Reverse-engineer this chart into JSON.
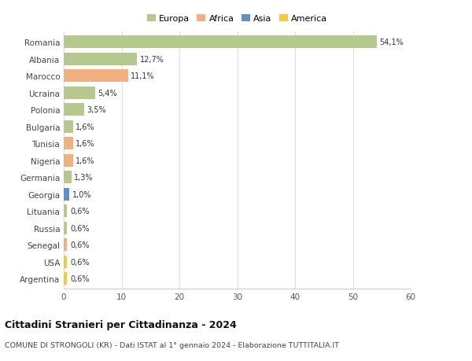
{
  "countries": [
    "Romania",
    "Albania",
    "Marocco",
    "Ucraina",
    "Polonia",
    "Bulgaria",
    "Tunisia",
    "Nigeria",
    "Germania",
    "Georgia",
    "Lituania",
    "Russia",
    "Senegal",
    "USA",
    "Argentina"
  ],
  "values": [
    54.1,
    12.7,
    11.1,
    5.4,
    3.5,
    1.6,
    1.6,
    1.6,
    1.3,
    1.0,
    0.6,
    0.6,
    0.6,
    0.6,
    0.6
  ],
  "labels": [
    "54,1%",
    "12,7%",
    "11,1%",
    "5,4%",
    "3,5%",
    "1,6%",
    "1,6%",
    "1,6%",
    "1,3%",
    "1,0%",
    "0,6%",
    "0,6%",
    "0,6%",
    "0,6%",
    "0,6%"
  ],
  "colors": [
    "#b5c98e",
    "#b5c98e",
    "#f0b080",
    "#b5c98e",
    "#b5c98e",
    "#b5c98e",
    "#f0b080",
    "#f0b080",
    "#b5c98e",
    "#6090c8",
    "#b5c98e",
    "#b5c98e",
    "#f0b080",
    "#f5c842",
    "#f5c842"
  ],
  "legend_labels": [
    "Europa",
    "Africa",
    "Asia",
    "America"
  ],
  "legend_colors": [
    "#b5c98e",
    "#f0b080",
    "#6090c8",
    "#f5c842"
  ],
  "title": "Cittadini Stranieri per Cittadinanza - 2024",
  "subtitle": "COMUNE DI STRONGOLI (KR) - Dati ISTAT al 1° gennaio 2024 - Elaborazione TUTTITALIA.IT",
  "xlim": [
    0,
    60
  ],
  "xticks": [
    0,
    10,
    20,
    30,
    40,
    50,
    60
  ],
  "bg_color": "#ffffff",
  "grid_color": "#dddddd",
  "bar_height": 0.75
}
